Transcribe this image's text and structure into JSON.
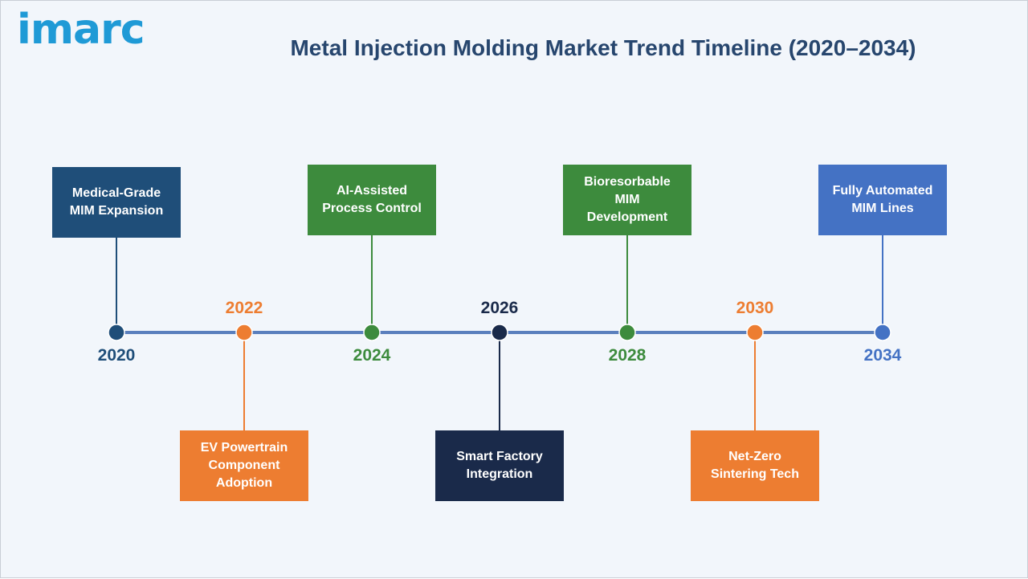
{
  "logo": {
    "text": "imarc",
    "color": "#1f9ad6"
  },
  "title": "Metal Injection Molding Market Trend Timeline (2020–2034)",
  "colors": {
    "line": "#5a7fbd",
    "navy": "#1f4e79",
    "orange": "#ed7d31",
    "green": "#3d8b3d",
    "dark": "#1a2a4a",
    "blue": "#4472c4"
  },
  "milestones": [
    {
      "year": "2020",
      "label": "Medical-Grade\nMIM Expansion",
      "color": "#1f4e79",
      "position": "top"
    },
    {
      "year": "2022",
      "label": "EV Powertrain\nComponent\nAdoption",
      "color": "#ed7d31",
      "position": "bottom"
    },
    {
      "year": "2024",
      "label": "AI-Assisted\nProcess Control",
      "color": "#3d8b3d",
      "position": "top"
    },
    {
      "year": "2026",
      "label": "Smart Factory\nIntegration",
      "color": "#1a2a4a",
      "position": "bottom"
    },
    {
      "year": "2028",
      "label": "Bioresorbable\nMIM\nDevelopment",
      "color": "#3d8b3d",
      "position": "top"
    },
    {
      "year": "2030",
      "label": "Net-Zero\nSintering Tech",
      "color": "#ed7d31",
      "position": "bottom"
    },
    {
      "year": "2034",
      "label": "Fully Automated\nMIM Lines",
      "color": "#4472c4",
      "position": "top"
    }
  ]
}
